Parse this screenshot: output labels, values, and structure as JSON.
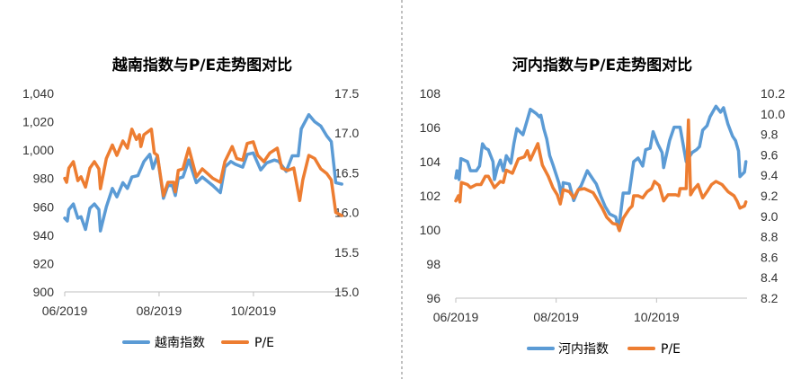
{
  "colors": {
    "index": "#5B9BD5",
    "pe": "#ED7D31",
    "axis": "#BFBFBF",
    "divider": "#808080"
  },
  "chart_data": [
    {
      "type": "line",
      "title": "越南指数与P/E走势图对比",
      "x_unit": "days since 2019-06-01",
      "xticks": [
        {
          "x": 0,
          "label": "06/2019"
        },
        {
          "x": 61,
          "label": "08/2019"
        },
        {
          "x": 122,
          "label": "10/2019"
        }
      ],
      "xlim": [
        0,
        179
      ],
      "y_left": {
        "lim": [
          900,
          1040
        ],
        "ticks": [
          "900",
          "920",
          "940",
          "960",
          "980",
          "1,000",
          "1,020",
          "1,040"
        ],
        "values": [
          900,
          920,
          940,
          960,
          980,
          1000,
          1020,
          1040
        ]
      },
      "y_right": {
        "lim": [
          15.0,
          17.5
        ],
        "ticks": [
          "15.0",
          "15.5",
          "16.0",
          "16.5",
          "17.0",
          "17.5"
        ],
        "values": [
          15.0,
          15.5,
          16.0,
          16.5,
          17.0,
          17.5
        ]
      },
      "legend": {
        "position": "bottom",
        "entries": [
          "越南指数",
          "P/E"
        ]
      },
      "series": [
        {
          "name": "越南指数",
          "axis": "left",
          "x": [
            0,
            1.7,
            2.7,
            5.6,
            8.5,
            10.5,
            13.4,
            16.3,
            19.2,
            22.1,
            23.1,
            26.9,
            30.8,
            33.7,
            37.6,
            40.5,
            43.4,
            47.3,
            51.2,
            55,
            57,
            59.9,
            63.8,
            66.7,
            69.6,
            71.5,
            73.4,
            76.4,
            80.2,
            85.1,
            88.9,
            95.7,
            100.6,
            103.5,
            107.4,
            110.3,
            115.1,
            118,
            121.9,
            126.7,
            130.6,
            135.5,
            138.4,
            143.2,
            147.1,
            151,
            152.9,
            157.8,
            161.6,
            165.5,
            169.4,
            172.3,
            175.2,
            179.1
          ],
          "y": [
            952,
            950,
            958,
            962,
            952,
            953,
            944,
            959,
            962,
            958,
            943,
            960,
            973,
            967,
            977,
            973,
            981,
            982,
            992,
            997,
            987,
            996,
            966,
            975,
            975,
            968,
            980,
            981,
            993,
            977,
            981,
            975,
            970,
            988,
            992,
            990,
            988,
            997,
            998,
            986,
            991,
            993,
            992,
            985,
            996,
            996,
            1015,
            1025,
            1020,
            1017,
            1010,
            1006,
            977,
            976
          ]
        },
        {
          "name": "P/E",
          "axis": "right",
          "x": [
            0,
            1.2,
            2.7,
            5.6,
            8.5,
            10.5,
            13.4,
            16.3,
            19.2,
            22.1,
            23.1,
            26.9,
            30.8,
            33.7,
            37.6,
            40.5,
            43.4,
            46.3,
            48.3,
            49.2,
            51.2,
            56,
            57.9,
            59.9,
            63.8,
            66.7,
            70.5,
            71.5,
            73.4,
            76.4,
            80.2,
            85.1,
            88.9,
            95.7,
            100.6,
            103.5,
            108.3,
            111.2,
            115.1,
            118,
            121.9,
            124.8,
            128.7,
            132.6,
            137.4,
            140.3,
            144.2,
            148.1,
            151.9,
            153.9,
            157.8,
            161.6,
            165.5,
            169.4,
            172.3,
            175.2,
            179.1
          ],
          "y": [
            16.43,
            16.38,
            16.56,
            16.64,
            16.4,
            16.45,
            16.32,
            16.56,
            16.64,
            16.55,
            16.3,
            16.68,
            16.85,
            16.72,
            16.9,
            16.81,
            17.05,
            16.92,
            16.98,
            16.83,
            16.98,
            17.05,
            16.75,
            16.72,
            16.21,
            16.38,
            16.38,
            16.26,
            16.53,
            16.55,
            16.81,
            16.45,
            16.55,
            16.43,
            16.38,
            16.64,
            16.83,
            16.68,
            16.66,
            16.87,
            16.89,
            16.72,
            16.64,
            16.75,
            16.81,
            16.56,
            16.53,
            16.56,
            16.15,
            16.41,
            16.72,
            16.68,
            16.55,
            16.49,
            16.41,
            16.0,
            15.96
          ]
        }
      ]
    },
    {
      "type": "line",
      "title": "河内指数与P/E走势图对比",
      "x_unit": "days since 2019-06-01",
      "xticks": [
        {
          "x": 0,
          "label": "06/2019"
        },
        {
          "x": 61,
          "label": "08/2019"
        },
        {
          "x": 122,
          "label": "10/2019"
        }
      ],
      "xlim": [
        0,
        177
      ],
      "y_left": {
        "lim": [
          96,
          108
        ],
        "ticks": [
          "96",
          "98",
          "100",
          "102",
          "104",
          "106",
          "108"
        ],
        "values": [
          96,
          98,
          100,
          102,
          104,
          106,
          108
        ]
      },
      "y_right": {
        "lim": [
          8.2,
          10.2
        ],
        "ticks": [
          "8.2",
          "8.4",
          "8.6",
          "8.8",
          "9.0",
          "9.2",
          "9.4",
          "9.6",
          "9.8",
          "10.0",
          "10.2"
        ],
        "values": [
          8.2,
          8.4,
          8.6,
          8.8,
          9.0,
          9.2,
          9.4,
          9.6,
          9.8,
          10.0,
          10.2
        ]
      },
      "legend": {
        "position": "bottom",
        "entries": [
          "河内指数",
          "P/E"
        ]
      },
      "series": [
        {
          "name": "河内指数",
          "axis": "left",
          "x": [
            0,
            0.7,
            2.0,
            3.1,
            7.1,
            8.9,
            12.5,
            14.4,
            16.2,
            18.0,
            19.8,
            22.6,
            23.5,
            25.3,
            27.1,
            28.9,
            30.7,
            33.5,
            35.3,
            37.1,
            40.8,
            43.5,
            45.3,
            49.0,
            50.8,
            51.7,
            53.5,
            55.3,
            57.1,
            59.0,
            60.8,
            62.6,
            64.4,
            65.3,
            69.0,
            71.7,
            74.4,
            76.2,
            79.9,
            83.5,
            85.4,
            88.1,
            90.8,
            93.5,
            97.2,
            99.0,
            101.7,
            105.4,
            108.1,
            110.8,
            113.6,
            115.4,
            118.1,
            119.9,
            122.7,
            125.4,
            126.3,
            129.9,
            132.7,
            136.3,
            140.0,
            143.6,
            146.3,
            148.1,
            150.0,
            152.7,
            154.5,
            158.1,
            160.9,
            162.7,
            165.4,
            168.2,
            170.0,
            171.8,
            172.7,
            175.4,
            176.3
          ],
          "y": [
            103.04,
            103.47,
            102.95,
            104.18,
            104.0,
            103.47,
            103.47,
            103.74,
            105.05,
            104.79,
            104.7,
            104.0,
            102.95,
            103.65,
            104.09,
            103.47,
            104.35,
            103.91,
            105.05,
            105.93,
            105.58,
            106.46,
            107.07,
            106.81,
            106.63,
            106.72,
            105.93,
            105.32,
            104.35,
            103.83,
            103.3,
            102.77,
            101.9,
            102.77,
            102.69,
            101.72,
            102.34,
            102.6,
            103.47,
            102.95,
            102.69,
            101.98,
            101.37,
            100.93,
            100.76,
            100.05,
            102.16,
            102.16,
            104.0,
            104.21,
            103.74,
            104.7,
            104.79,
            105.76,
            105.05,
            104.53,
            103.65,
            105.23,
            106.02,
            106.02,
            104.0,
            104.53,
            104.7,
            104.88,
            105.84,
            106.11,
            106.63,
            107.25,
            106.9,
            107.16,
            106.19,
            105.49,
            105.23,
            104.62,
            103.12,
            103.39,
            104.0
          ]
        },
        {
          "name": "P/E",
          "axis": "right",
          "x": [
            0,
            1.6,
            2.5,
            3.4,
            7.1,
            8.9,
            12.5,
            15.3,
            18.0,
            19.8,
            23.5,
            27.1,
            28.9,
            30.7,
            34.4,
            38.0,
            41.7,
            43.5,
            45.3,
            49.9,
            52.6,
            56.2,
            59.0,
            61.7,
            63.5,
            65.3,
            69.0,
            71.7,
            74.4,
            78.1,
            83.5,
            85.4,
            89.0,
            91.7,
            95.4,
            98.1,
            99.4,
            101.7,
            105.4,
            107.2,
            108.1,
            110.8,
            113.6,
            116.3,
            119.0,
            120.8,
            123.6,
            126.3,
            129.0,
            133.6,
            135.4,
            136.3,
            140.0,
            141.4,
            142.7,
            144.5,
            147.2,
            150.0,
            152.7,
            155.4,
            158.1,
            161.8,
            165.4,
            169.1,
            170.9,
            172.7,
            175.4,
            176.3
          ],
          "y": [
            9.15,
            9.2,
            9.14,
            9.33,
            9.31,
            9.28,
            9.31,
            9.31,
            9.39,
            9.39,
            9.28,
            9.34,
            9.33,
            9.45,
            9.42,
            9.56,
            9.58,
            9.64,
            9.55,
            9.71,
            9.5,
            9.39,
            9.28,
            9.21,
            9.12,
            9.26,
            9.24,
            9.18,
            9.26,
            9.27,
            9.23,
            9.18,
            9.08,
            8.99,
            8.93,
            8.92,
            8.86,
            8.98,
            9.07,
            9.1,
            9.2,
            9.2,
            9.18,
            9.24,
            9.27,
            9.34,
            9.3,
            9.15,
            9.21,
            9.21,
            9.2,
            9.27,
            9.27,
            9.94,
            9.21,
            9.26,
            9.31,
            9.18,
            9.24,
            9.31,
            9.34,
            9.31,
            9.24,
            9.2,
            9.15,
            9.08,
            9.1,
            9.14
          ]
        }
      ]
    }
  ]
}
